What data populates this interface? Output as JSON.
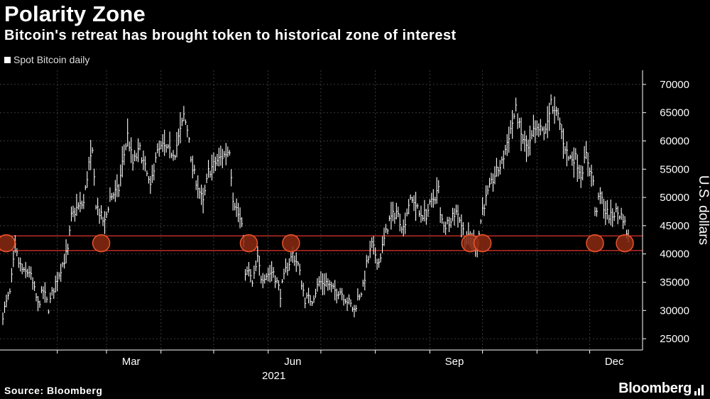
{
  "header": {
    "title": "Polarity Zone",
    "subtitle": "Bitcoin's retreat has brought token to historical zone of interest"
  },
  "legend": {
    "label": "Spot Bitcoin daily"
  },
  "footer": {
    "source": "Source: Bloomberg",
    "brand": "Bloomberg"
  },
  "colors": {
    "background": "#000000",
    "bars": "#ffffff",
    "zone": "#e0352b",
    "circle_fill": "#8b2a12",
    "circle_stroke": "#e8542e"
  },
  "chart_data": {
    "type": "line",
    "series_style": "daily price bars (high-low)",
    "ylabel": "U.S. dollars",
    "xlabel": "2021",
    "x_ticks": [
      "Mar",
      "Jun",
      "Sep",
      "Dec"
    ],
    "y_ticks": [
      25000,
      30000,
      35000,
      40000,
      45000,
      50000,
      55000,
      60000,
      65000,
      70000
    ],
    "ylim": [
      23000,
      72500
    ],
    "xlim": [
      "2021-01-01",
      "2021-12-23"
    ],
    "zone": {
      "low": 40600,
      "high": 43200
    },
    "series": [
      {
        "name": "Spot Bitcoin daily",
        "points": [
          [
            "2021-01-01",
            29400
          ],
          [
            "2021-01-05",
            33000
          ],
          [
            "2021-01-08",
            41000
          ],
          [
            "2021-01-10",
            38500
          ],
          [
            "2021-01-13",
            36500
          ],
          [
            "2021-01-16",
            37000
          ],
          [
            "2021-01-21",
            31000
          ],
          [
            "2021-01-24",
            33500
          ],
          [
            "2021-01-27",
            30500
          ],
          [
            "2021-01-30",
            34000
          ],
          [
            "2021-02-03",
            37500
          ],
          [
            "2021-02-07",
            40500
          ],
          [
            "2021-02-09",
            46500
          ],
          [
            "2021-02-12",
            48000
          ],
          [
            "2021-02-16",
            49000
          ],
          [
            "2021-02-19",
            56000
          ],
          [
            "2021-02-21",
            57500
          ],
          [
            "2021-02-23",
            49000
          ],
          [
            "2021-02-26",
            46500
          ],
          [
            "2021-02-28",
            45500
          ],
          [
            "2021-03-03",
            50000
          ],
          [
            "2021-03-08",
            51500
          ],
          [
            "2021-03-10",
            56000
          ],
          [
            "2021-03-13",
            61000
          ],
          [
            "2021-03-16",
            56000
          ],
          [
            "2021-03-20",
            58500
          ],
          [
            "2021-03-24",
            54000
          ],
          [
            "2021-03-26",
            51500
          ],
          [
            "2021-03-29",
            57500
          ],
          [
            "2021-04-02",
            59000
          ],
          [
            "2021-04-06",
            58000
          ],
          [
            "2021-04-09",
            58000
          ],
          [
            "2021-04-13",
            63000
          ],
          [
            "2021-04-14",
            64500
          ],
          [
            "2021-04-17",
            61000
          ],
          [
            "2021-04-18",
            56000
          ],
          [
            "2021-04-23",
            51000
          ],
          [
            "2021-04-25",
            49000
          ],
          [
            "2021-04-28",
            54500
          ],
          [
            "2021-05-03",
            56500
          ],
          [
            "2021-05-07",
            57500
          ],
          [
            "2021-05-10",
            58500
          ],
          [
            "2021-05-12",
            50000
          ],
          [
            "2021-05-16",
            46000
          ],
          [
            "2021-05-18",
            43000
          ],
          [
            "2021-05-19",
            36000
          ],
          [
            "2021-05-21",
            37000
          ],
          [
            "2021-05-23",
            34500
          ],
          [
            "2021-05-26",
            39000
          ],
          [
            "2021-05-28",
            36000
          ],
          [
            "2021-06-01",
            36500
          ],
          [
            "2021-06-04",
            37000
          ],
          [
            "2021-06-08",
            33000
          ],
          [
            "2021-06-11",
            37000
          ],
          [
            "2021-06-15",
            40000
          ],
          [
            "2021-06-18",
            38000
          ],
          [
            "2021-06-22",
            32000
          ],
          [
            "2021-06-26",
            32000
          ],
          [
            "2021-06-30",
            35000
          ],
          [
            "2021-07-04",
            35000
          ],
          [
            "2021-07-08",
            33500
          ],
          [
            "2021-07-12",
            33500
          ],
          [
            "2021-07-16",
            31800
          ],
          [
            "2021-07-20",
            30000
          ],
          [
            "2021-07-22",
            32200
          ],
          [
            "2021-07-25",
            34000
          ],
          [
            "2021-07-27",
            38000
          ],
          [
            "2021-07-30",
            41500
          ],
          [
            "2021-08-03",
            38500
          ],
          [
            "2021-08-06",
            42500
          ],
          [
            "2021-08-09",
            46000
          ],
          [
            "2021-08-13",
            47500
          ],
          [
            "2021-08-17",
            44500
          ],
          [
            "2021-08-20",
            49000
          ],
          [
            "2021-08-23",
            49500
          ],
          [
            "2021-08-26",
            47000
          ],
          [
            "2021-08-30",
            47000
          ],
          [
            "2021-09-01",
            48500
          ],
          [
            "2021-09-06",
            51500
          ],
          [
            "2021-09-07",
            46500
          ],
          [
            "2021-09-10",
            45000
          ],
          [
            "2021-09-14",
            47000
          ],
          [
            "2021-09-17",
            47500
          ],
          [
            "2021-09-21",
            43000
          ],
          [
            "2021-09-24",
            42500
          ],
          [
            "2021-09-28",
            41500
          ],
          [
            "2021-10-01",
            48000
          ],
          [
            "2021-10-05",
            51500
          ],
          [
            "2021-10-08",
            54000
          ],
          [
            "2021-10-12",
            56000
          ],
          [
            "2021-10-16",
            61000
          ],
          [
            "2021-10-20",
            65500
          ],
          [
            "2021-10-23",
            61000
          ],
          [
            "2021-10-27",
            58500
          ],
          [
            "2021-10-30",
            61500
          ],
          [
            "2021-11-03",
            62000
          ],
          [
            "2021-11-06",
            61500
          ],
          [
            "2021-11-09",
            67500
          ],
          [
            "2021-11-10",
            65000
          ],
          [
            "2021-11-13",
            64500
          ],
          [
            "2021-11-16",
            60000
          ],
          [
            "2021-11-19",
            57000
          ],
          [
            "2021-11-23",
            57000
          ],
          [
            "2021-11-26",
            54000
          ],
          [
            "2021-11-29",
            57500
          ],
          [
            "2021-12-03",
            53000
          ],
          [
            "2021-12-04",
            47000
          ],
          [
            "2021-12-07",
            50500
          ],
          [
            "2021-12-10",
            47500
          ],
          [
            "2021-12-13",
            46500
          ],
          [
            "2021-12-16",
            47500
          ],
          [
            "2021-12-20",
            46500
          ],
          [
            "2021-12-23",
            42800
          ]
        ]
      }
    ],
    "zone_touches": [
      "2021-01-03",
      "2021-02-26",
      "2021-05-21",
      "2021-06-14",
      "2021-09-24",
      "2021-10-01",
      "2021-12-04",
      "2021-12-21"
    ]
  }
}
